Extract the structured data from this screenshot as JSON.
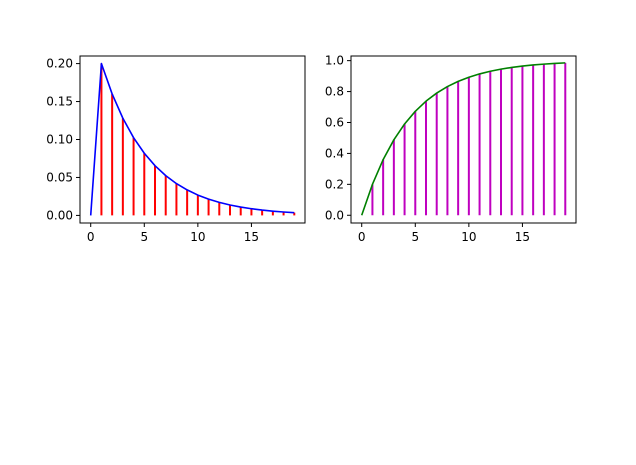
{
  "chart_data": [
    {
      "type": "line",
      "title": "",
      "xlabel": "",
      "ylabel": "",
      "xlim": [
        -1,
        20
      ],
      "ylim": [
        -0.01,
        0.21
      ],
      "x_ticks": [
        0,
        5,
        10,
        15
      ],
      "x_tick_labels": [
        "0",
        "5",
        "10",
        "15"
      ],
      "y_ticks": [
        0.0,
        0.05,
        0.1,
        0.15,
        0.2
      ],
      "y_tick_labels": [
        "0.00",
        "0.05",
        "0.10",
        "0.15",
        "0.20"
      ],
      "grid": false,
      "legend": "none",
      "x": [
        0,
        1,
        2,
        3,
        4,
        5,
        6,
        7,
        8,
        9,
        10,
        11,
        12,
        13,
        14,
        15,
        16,
        17,
        18,
        19
      ],
      "series": [
        {
          "style": "vlines",
          "color": "#ff0000",
          "values": [
            0.0,
            0.2,
            0.16,
            0.128,
            0.1024,
            0.0819,
            0.0655,
            0.0524,
            0.0419,
            0.0336,
            0.0268,
            0.0215,
            0.0172,
            0.0137,
            0.011,
            0.0088,
            0.007,
            0.0056,
            0.0045,
            0.0036
          ]
        },
        {
          "style": "line",
          "color": "#0000ff",
          "values": [
            0.0,
            0.2,
            0.16,
            0.128,
            0.1024,
            0.0819,
            0.0655,
            0.0524,
            0.0419,
            0.0336,
            0.0268,
            0.0215,
            0.0172,
            0.0137,
            0.011,
            0.0088,
            0.007,
            0.0056,
            0.0045,
            0.0036
          ]
        }
      ]
    },
    {
      "type": "line",
      "title": "",
      "xlabel": "",
      "ylabel": "",
      "xlim": [
        -1,
        20
      ],
      "ylim": [
        -0.05,
        1.03
      ],
      "x_ticks": [
        0,
        5,
        10,
        15
      ],
      "x_tick_labels": [
        "0",
        "5",
        "10",
        "15"
      ],
      "y_ticks": [
        0.0,
        0.2,
        0.4,
        0.6,
        0.8,
        1.0
      ],
      "y_tick_labels": [
        "0.0",
        "0.2",
        "0.4",
        "0.6",
        "0.8",
        "1.0"
      ],
      "grid": false,
      "legend": "none",
      "x": [
        0,
        1,
        2,
        3,
        4,
        5,
        6,
        7,
        8,
        9,
        10,
        11,
        12,
        13,
        14,
        15,
        16,
        17,
        18,
        19
      ],
      "series": [
        {
          "style": "vlines",
          "color": "#bf00bf",
          "values": [
            0.0,
            0.2,
            0.36,
            0.488,
            0.5904,
            0.6723,
            0.7379,
            0.7903,
            0.8322,
            0.8658,
            0.8926,
            0.9141,
            0.9313,
            0.945,
            0.956,
            0.9648,
            0.9719,
            0.9775,
            0.982,
            0.9856
          ]
        },
        {
          "style": "line",
          "color": "#008000",
          "values": [
            0.0,
            0.2,
            0.36,
            0.488,
            0.5904,
            0.6723,
            0.7379,
            0.7903,
            0.8322,
            0.8658,
            0.8926,
            0.9141,
            0.9313,
            0.945,
            0.956,
            0.9648,
            0.9719,
            0.9775,
            0.982,
            0.9856
          ]
        }
      ]
    }
  ]
}
